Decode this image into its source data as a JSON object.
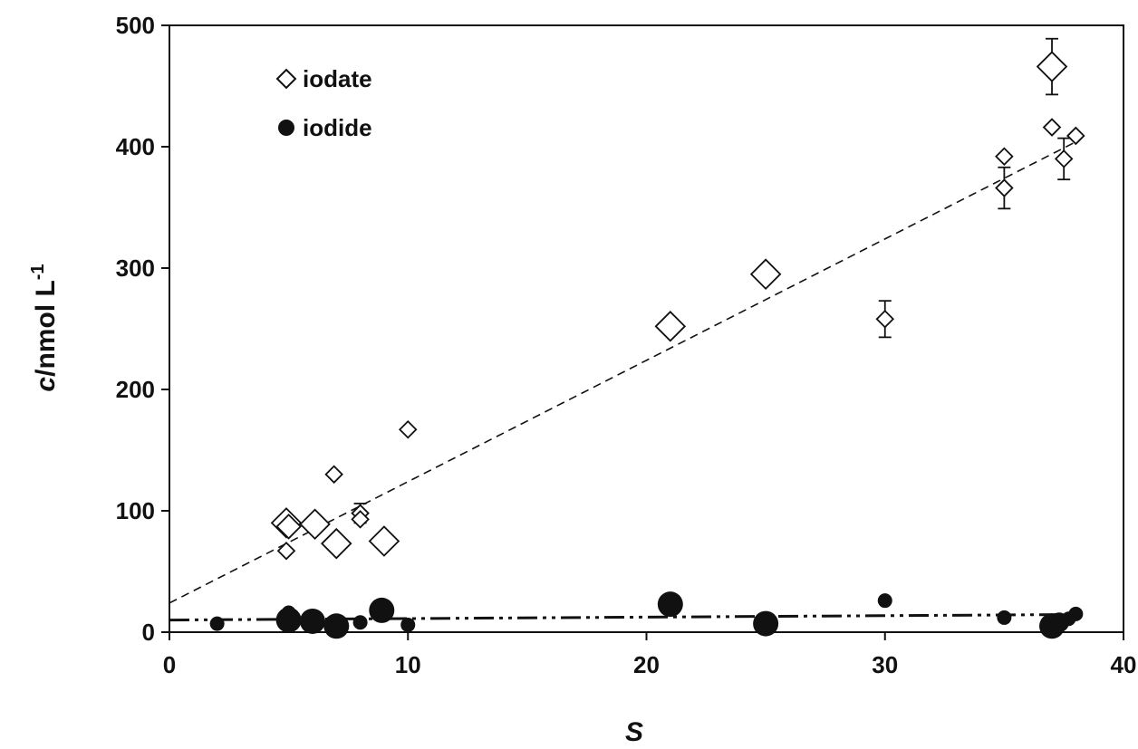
{
  "chart_data": {
    "type": "scatter",
    "xlabel": "S",
    "ylabel": "c/nmol L",
    "ylabel_sup": "-1",
    "xlim": [
      0,
      40
    ],
    "ylim": [
      0,
      500
    ],
    "x_ticks": [
      "0",
      "10",
      "20",
      "30",
      "40"
    ],
    "y_ticks": [
      "0",
      "100",
      "200",
      "300",
      "400",
      "500"
    ],
    "grid": false,
    "legend_position": "top-left",
    "series": [
      {
        "name": "iodate",
        "marker": "open-diamond",
        "color": "#111111",
        "points": [
          {
            "x": 4.9,
            "y": 90,
            "size": "large"
          },
          {
            "x": 4.9,
            "y": 67,
            "size": "small"
          },
          {
            "x": 5.0,
            "y": 87,
            "size": "medium"
          },
          {
            "x": 6.1,
            "y": 89,
            "size": "large"
          },
          {
            "x": 6.9,
            "y": 130,
            "size": "small"
          },
          {
            "x": 7.0,
            "y": 73,
            "size": "large"
          },
          {
            "x": 8.0,
            "y": 98,
            "size": "small",
            "err": 8
          },
          {
            "x": 8.0,
            "y": 93,
            "size": "small"
          },
          {
            "x": 9.0,
            "y": 75,
            "size": "large"
          },
          {
            "x": 10.0,
            "y": 167,
            "size": "small"
          },
          {
            "x": 21.0,
            "y": 252,
            "size": "large"
          },
          {
            "x": 25.0,
            "y": 295,
            "size": "large"
          },
          {
            "x": 30.0,
            "y": 258,
            "size": "small",
            "err": 15
          },
          {
            "x": 35.0,
            "y": 392,
            "size": "small"
          },
          {
            "x": 35.0,
            "y": 366,
            "size": "small",
            "err": 17
          },
          {
            "x": 37.0,
            "y": 466,
            "size": "large",
            "err": 23
          },
          {
            "x": 37.0,
            "y": 416,
            "size": "small"
          },
          {
            "x": 37.5,
            "y": 390,
            "size": "small",
            "err": 17
          },
          {
            "x": 38.0,
            "y": 409,
            "size": "small"
          }
        ],
        "fit": {
          "style": "dashed",
          "intercept": 24,
          "slope": 10.0,
          "x_range": [
            0,
            38
          ]
        }
      },
      {
        "name": "iodide",
        "marker": "filled-circle",
        "color": "#111111",
        "points": [
          {
            "x": 2.0,
            "y": 7,
            "size": "small"
          },
          {
            "x": 5.0,
            "y": 10,
            "size": "large"
          },
          {
            "x": 5.0,
            "y": 16,
            "size": "small"
          },
          {
            "x": 6.0,
            "y": 9,
            "size": "large"
          },
          {
            "x": 7.0,
            "y": 5,
            "size": "large"
          },
          {
            "x": 8.0,
            "y": 8,
            "size": "small"
          },
          {
            "x": 8.9,
            "y": 18,
            "size": "large"
          },
          {
            "x": 10.0,
            "y": 6,
            "size": "small"
          },
          {
            "x": 21.0,
            "y": 23,
            "size": "large"
          },
          {
            "x": 25.0,
            "y": 7,
            "size": "large"
          },
          {
            "x": 30.0,
            "y": 26,
            "size": "small"
          },
          {
            "x": 35.0,
            "y": 12,
            "size": "small"
          },
          {
            "x": 37.0,
            "y": 5,
            "size": "large"
          },
          {
            "x": 37.3,
            "y": 8,
            "size": "medium"
          },
          {
            "x": 37.7,
            "y": 11,
            "size": "small"
          },
          {
            "x": 38.0,
            "y": 15,
            "size": "small"
          }
        ],
        "fit": {
          "style": "dash-dot",
          "intercept": 10,
          "slope": 0.12,
          "x_range": [
            0,
            38
          ]
        }
      }
    ]
  }
}
